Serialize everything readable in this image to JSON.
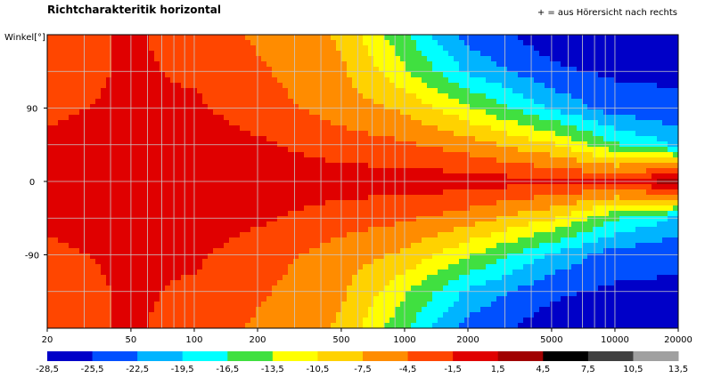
{
  "chart_data": {
    "type": "heatmap",
    "title": "Richtcharakteritik horizontal",
    "note": "+ = aus Hörersicht nach rechts",
    "ylabel": "Winkel[°]",
    "xlabel": "",
    "x_scale": "log",
    "xlim": [
      20,
      20000
    ],
    "ylim": [
      -180,
      180
    ],
    "x_tick_labels": [
      "20",
      "50",
      "100",
      "200",
      "500",
      "1000",
      "2000",
      "5000",
      "10000",
      "20000"
    ],
    "x_tick_values": [
      20,
      50,
      100,
      200,
      500,
      1000,
      2000,
      5000,
      10000,
      20000
    ],
    "y_tick_labels": [
      "90",
      "0",
      "-90"
    ],
    "y_tick_values": [
      90,
      0,
      -90
    ],
    "grid": true,
    "legend_position": "bottom",
    "colorbar_labels": [
      "-28,5",
      "-25,5",
      "-22,5",
      "-19,5",
      "-16,5",
      "-13,5",
      "-10,5",
      "-7,5",
      "-4,5",
      "-1,5",
      "1,5",
      "4,5",
      "7,5",
      "10,5",
      "13,5"
    ],
    "colorbar_colors": [
      "#0000c8",
      "#0050ff",
      "#00b4ff",
      "#00ffff",
      "#40e040",
      "#ffff00",
      "#ffd200",
      "#ff8c00",
      "#ff4600",
      "#e00000",
      "#a00000",
      "#000000",
      "#404040",
      "#a0a0a0",
      "#e0e0e0"
    ],
    "frequencies_hz": [
      20,
      50,
      100,
      200,
      500,
      1000,
      2000,
      5000,
      10000,
      20000
    ],
    "angles_deg": [
      180,
      135,
      90,
      45,
      0,
      -45,
      -90,
      -135,
      -180
    ],
    "values_db": [
      [
        -3,
        -1,
        -3,
        -5,
        -8,
        -16,
        -24,
        -27,
        -27,
        -27
      ],
      [
        -3,
        -1,
        -2,
        -4,
        -7,
        -13,
        -20,
        -25,
        -26,
        -26
      ],
      [
        -2,
        -1,
        -1,
        -3,
        -6,
        -8,
        -13,
        -20,
        -24,
        -25
      ],
      [
        -1,
        0,
        0,
        -1,
        -3,
        -4,
        -6,
        -10,
        -16,
        -20
      ],
      [
        0,
        0,
        0,
        0,
        0,
        0,
        0,
        -1,
        -1,
        3
      ],
      [
        -1,
        0,
        0,
        -1,
        -3,
        -4,
        -6,
        -10,
        -16,
        -20
      ],
      [
        -2,
        -1,
        -1,
        -3,
        -6,
        -8,
        -13,
        -20,
        -24,
        -25
      ],
      [
        -3,
        -1,
        -2,
        -4,
        -7,
        -13,
        -20,
        -25,
        -26,
        -26
      ],
      [
        -3,
        -1,
        -3,
        -5,
        -8,
        -16,
        -24,
        -27,
        -27,
        -27
      ]
    ]
  }
}
